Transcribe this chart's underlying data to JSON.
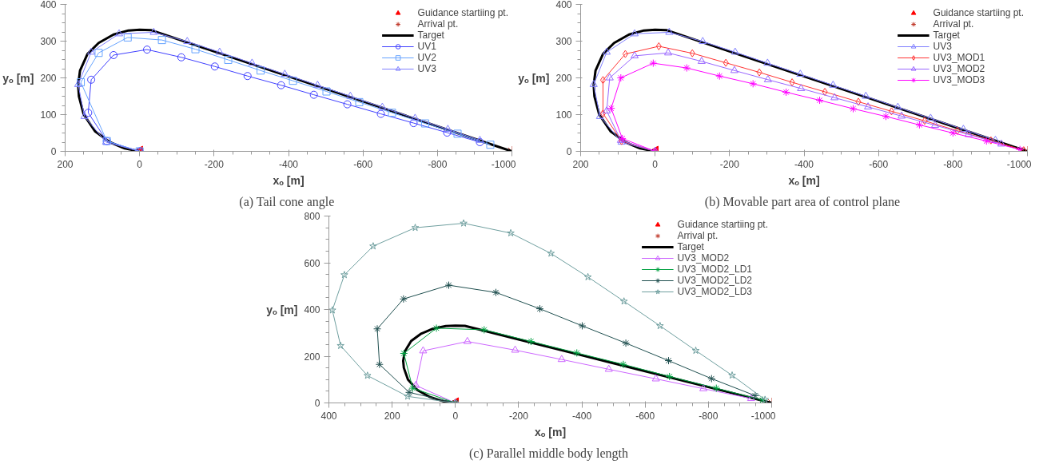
{
  "chart_data": [
    {
      "type": "line",
      "title": "(a)  Tail cone angle",
      "xlabel": "xₒ [m]",
      "ylabel": "yₒ [m]",
      "xlim": [
        200,
        -1000
      ],
      "xticks": [
        200,
        0,
        -200,
        -400,
        -600,
        -800,
        -1000
      ],
      "ylim": [
        0,
        400
      ],
      "yticks": [
        0,
        100,
        200,
        300,
        400
      ],
      "grid": false,
      "legend": "top right",
      "series": [
        {
          "name": "Guidance startiing pt.",
          "type": "scatter",
          "color": "#ff0000",
          "marker": "triangle",
          "x": [
            0
          ],
          "values": [
            0
          ]
        },
        {
          "name": "Arrival pt.",
          "type": "scatter",
          "color": "#c0392b",
          "marker": "cross",
          "x": [
            -1000
          ],
          "values": [
            0
          ]
        },
        {
          "name": "Target",
          "color": "#000000",
          "marker": "none",
          "x": [
            0,
            40,
            80,
            120,
            150,
            163,
            165,
            160,
            140,
            110,
            70,
            30,
            0,
            -30,
            -200,
            -400,
            -600,
            -800,
            -1000
          ],
          "values": [
            0,
            8,
            25,
            55,
            100,
            150,
            180,
            220,
            265,
            295,
            318,
            329,
            331,
            330,
            272,
            204,
            136,
            68,
            0
          ]
        },
        {
          "name": "UV1",
          "color": "#4040ff",
          "marker": "circle",
          "x": [
            0,
            88,
            138,
            130,
            70,
            -20,
            -112,
            -202,
            -290,
            -380,
            -468,
            -558,
            -648,
            -736,
            -826,
            -914
          ],
          "values": [
            0,
            28,
            105,
            195,
            262,
            277,
            256,
            231,
            205,
            180,
            154,
            128,
            102,
            77,
            51,
            25
          ]
        },
        {
          "name": "UV2",
          "color": "#66a3ff",
          "marker": "square",
          "x": [
            0,
            88,
            158,
            110,
            32,
            -60,
            -150,
            -238,
            -325,
            -412,
            -502,
            -590,
            -678,
            -767,
            -854,
            -942
          ],
          "values": [
            0,
            28,
            188,
            268,
            310,
            303,
            278,
            249,
            220,
            192,
            163,
            134,
            105,
            76,
            48,
            18
          ]
        },
        {
          "name": "UV3",
          "color": "#8080ff",
          "marker": "triangle",
          "x": [
            0,
            90,
            148,
            165,
            130,
            55,
            -38,
            -128,
            -215,
            -302,
            -390,
            -478,
            -566,
            -652,
            -740,
            -828,
            -914
          ],
          "values": [
            0,
            25,
            95,
            182,
            270,
            320,
            324,
            299,
            270,
            240,
            210,
            180,
            150,
            120,
            90,
            60,
            30
          ]
        }
      ]
    },
    {
      "type": "line",
      "title": "(b)  Movable part area of control plane",
      "xlabel": "xₒ [m]",
      "ylabel": "yₒ [m]",
      "xlim": [
        200,
        -1000
      ],
      "xticks": [
        200,
        0,
        -200,
        -400,
        -600,
        -800,
        -1000
      ],
      "ylim": [
        0,
        400
      ],
      "yticks": [
        0,
        100,
        200,
        300,
        400
      ],
      "grid": false,
      "legend": "top right",
      "series": [
        {
          "name": "Guidance startiing pt.",
          "type": "scatter",
          "color": "#ff0000",
          "marker": "triangle",
          "x": [
            0
          ],
          "values": [
            0
          ]
        },
        {
          "name": "Arrival pt.",
          "type": "scatter",
          "color": "#c0392b",
          "marker": "cross",
          "x": [
            -1000
          ],
          "values": [
            0
          ]
        },
        {
          "name": "Target",
          "color": "#000000",
          "marker": "none",
          "x": [
            0,
            40,
            80,
            120,
            150,
            163,
            165,
            160,
            140,
            110,
            70,
            30,
            0,
            -30,
            -200,
            -400,
            -600,
            -800,
            -1000
          ],
          "values": [
            0,
            8,
            25,
            55,
            100,
            150,
            180,
            220,
            265,
            295,
            318,
            329,
            331,
            330,
            272,
            204,
            136,
            68,
            0
          ]
        },
        {
          "name": "UV3",
          "color": "#8080ff",
          "marker": "triangle",
          "x": [
            0,
            90,
            148,
            165,
            130,
            55,
            -38,
            -128,
            -215,
            -302,
            -390,
            -478,
            -566,
            -652,
            -740,
            -828,
            -914
          ],
          "values": [
            0,
            25,
            95,
            182,
            270,
            320,
            324,
            299,
            270,
            240,
            210,
            180,
            150,
            120,
            90,
            60,
            30
          ]
        },
        {
          "name": "UV3_MOD1",
          "color": "#ff3333",
          "marker": "diamond",
          "x": [
            0,
            90,
            140,
            140,
            80,
            -10,
            -100,
            -190,
            -280,
            -368,
            -456,
            -546,
            -635,
            -724,
            -812,
            -902,
            -990
          ],
          "values": [
            0,
            28,
            103,
            194,
            265,
            286,
            267,
            241,
            215,
            188,
            162,
            135,
            109,
            83,
            56,
            30,
            3
          ]
        },
        {
          "name": "UV3_MOD2",
          "color": "#9966ff",
          "marker": "triangle",
          "x": [
            0,
            92,
            130,
            122,
            55,
            -35,
            -125,
            -213,
            -303,
            -392,
            -482,
            -572,
            -662,
            -752,
            -842,
            -930
          ],
          "values": [
            0,
            30,
            110,
            200,
            260,
            268,
            245,
            220,
            195,
            171,
            146,
            121,
            96,
            71,
            46,
            20
          ]
        },
        {
          "name": "UV3_MOD3",
          "color": "#ff00ff",
          "marker": "cross",
          "x": [
            0,
            88,
            118,
            92,
            5,
            -85,
            -173,
            -263,
            -352,
            -442,
            -532,
            -620,
            -710,
            -800,
            -890,
            -980
          ],
          "values": [
            0,
            35,
            117,
            200,
            240,
            227,
            205,
            184,
            161,
            139,
            116,
            95,
            72,
            50,
            28,
            5
          ]
        }
      ]
    },
    {
      "type": "line",
      "title": "(c)  Parallel middle body length",
      "xlabel": "xₒ [m]",
      "ylabel": "yₒ [m]",
      "xlim": [
        400,
        -1000
      ],
      "xticks": [
        400,
        200,
        0,
        -200,
        -400,
        -600,
        -800,
        -1000
      ],
      "ylim": [
        0,
        800
      ],
      "yticks": [
        0,
        200,
        400,
        600,
        800
      ],
      "grid": false,
      "legend": "top right",
      "series": [
        {
          "name": "Guidance startiing pt.",
          "type": "scatter",
          "color": "#ff0000",
          "marker": "triangle",
          "x": [
            0
          ],
          "values": [
            0
          ]
        },
        {
          "name": "Arrival pt.",
          "type": "scatter",
          "color": "#c0392b",
          "marker": "cross",
          "x": [
            -1000
          ],
          "values": [
            0
          ]
        },
        {
          "name": "Target",
          "color": "#000000",
          "marker": "none",
          "x": [
            0,
            40,
            80,
            120,
            150,
            163,
            165,
            160,
            140,
            110,
            70,
            30,
            0,
            -30,
            -200,
            -400,
            -600,
            -800,
            -1000
          ],
          "values": [
            0,
            8,
            25,
            55,
            100,
            150,
            180,
            220,
            265,
            295,
            318,
            329,
            331,
            330,
            272,
            204,
            136,
            68,
            0
          ]
        },
        {
          "name": "UV3_MOD2",
          "color": "#cc66ff",
          "marker": "triangle",
          "x": [
            0,
            125,
            102,
            -38,
            -189,
            -336,
            -485,
            -634,
            -784,
            -935
          ],
          "values": [
            0,
            75,
            223,
            263,
            226,
            186,
            144,
            103,
            61,
            19
          ]
        },
        {
          "name": "UV3_MOD2_LD1",
          "color": "#00a040",
          "marker": "cross",
          "x": [
            0,
            135,
            163,
            60,
            -91,
            -239,
            -384,
            -531,
            -677,
            -825,
            -971
          ],
          "values": [
            0,
            63,
            212,
            320,
            313,
            263,
            214,
            165,
            113,
            63,
            12
          ]
        },
        {
          "name": "UV3_MOD2_LD2",
          "color": "#1f4f4f",
          "marker": "cross",
          "x": [
            0,
            146,
            240,
            247,
            164,
            21,
            -128,
            -267,
            -401,
            -539,
            -674,
            -810,
            -948
          ],
          "values": [
            0,
            45,
            165,
            317,
            445,
            504,
            473,
            403,
            330,
            256,
            181,
            104,
            31
          ]
        },
        {
          "name": "UV3_MOD2_LD3",
          "color": "#6f9f9f",
          "marker": "star",
          "x": [
            0,
            151,
            278,
            363,
            389,
            351,
            260,
            127,
            -26,
            -175,
            -302,
            -419,
            -533,
            -647,
            -760,
            -875,
            -979
          ],
          "values": [
            0,
            28,
            117,
            245,
            397,
            548,
            671,
            750,
            769,
            727,
            640,
            539,
            435,
            330,
            224,
            118,
            14
          ]
        }
      ]
    }
  ]
}
